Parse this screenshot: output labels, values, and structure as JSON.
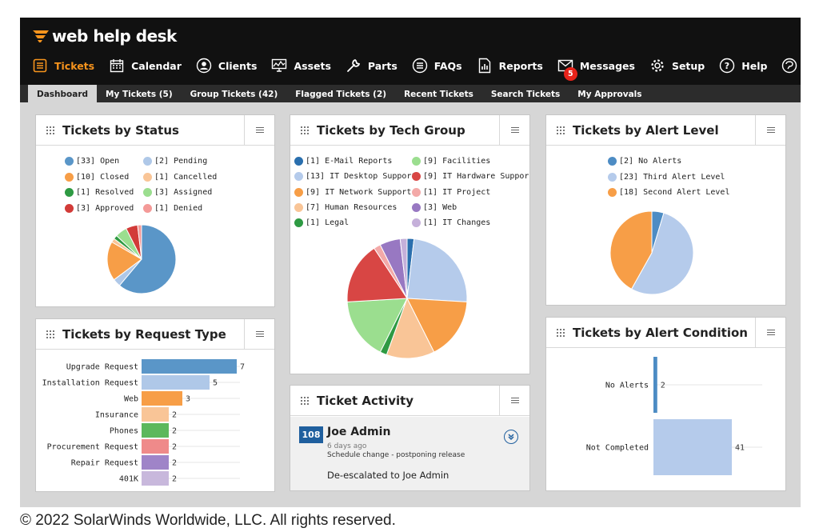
{
  "app": {
    "logo_text": "web help desk",
    "brand_color": "#f7941d"
  },
  "nav": [
    {
      "label": "Tickets",
      "icon": "tickets-icon",
      "active": true
    },
    {
      "label": "Calendar",
      "icon": "calendar-icon"
    },
    {
      "label": "Clients",
      "icon": "clients-icon"
    },
    {
      "label": "Assets",
      "icon": "assets-icon"
    },
    {
      "label": "Parts",
      "icon": "parts-icon"
    },
    {
      "label": "FAQs",
      "icon": "faqs-icon"
    },
    {
      "label": "Reports",
      "icon": "reports-icon"
    },
    {
      "label": "Messages",
      "icon": "messages-icon",
      "badge": "5"
    },
    {
      "label": "Setup",
      "icon": "setup-icon"
    },
    {
      "label": "Help",
      "icon": "help-icon"
    },
    {
      "label": "Thwack",
      "icon": "thwack-icon"
    }
  ],
  "tabs": [
    {
      "label": "Dashboard",
      "active": true
    },
    {
      "label": "My Tickets (5)"
    },
    {
      "label": "Group Tickets (42)"
    },
    {
      "label": "Flagged Tickets (2)"
    },
    {
      "label": "Recent Tickets"
    },
    {
      "label": "Search Tickets"
    },
    {
      "label": "My Approvals"
    }
  ],
  "widgets": {
    "status": {
      "title": "Tickets by Status"
    },
    "tech": {
      "title": "Tickets by Tech Group"
    },
    "alert_level": {
      "title": "Tickets by Alert Level"
    },
    "request_type": {
      "title": "Tickets by Request Type"
    },
    "activity": {
      "title": "Ticket Activity"
    },
    "alert_condition": {
      "title": "Tickets by Alert Condition"
    }
  },
  "activity": {
    "ticket_number": "108",
    "name": "Joe Admin",
    "time_ago": "6 days ago",
    "note": "Schedule change - postponing release",
    "action": "De-escalated to Joe Admin"
  },
  "chart_data": [
    {
      "id": "status",
      "type": "pie",
      "title": "Tickets by Status",
      "series": [
        {
          "name": "Open",
          "value": 33,
          "color": "#5a96c8"
        },
        {
          "name": "Pending",
          "value": 2,
          "color": "#afc8e8"
        },
        {
          "name": "Closed",
          "value": 10,
          "color": "#f79e47"
        },
        {
          "name": "Cancelled",
          "value": 1,
          "color": "#f9c597"
        },
        {
          "name": "Resolved",
          "value": 1,
          "color": "#2e9a43"
        },
        {
          "name": "Assigned",
          "value": 3,
          "color": "#9bde8f"
        },
        {
          "name": "Approved",
          "value": 3,
          "color": "#d23b38"
        },
        {
          "name": "Denied",
          "value": 1,
          "color": "#f49a98"
        }
      ]
    },
    {
      "id": "tech",
      "type": "pie",
      "title": "Tickets by Tech Group",
      "series": [
        {
          "name": "E-Mail Reports",
          "value": 1,
          "color": "#2a6fae"
        },
        {
          "name": "Facilities",
          "value": 9,
          "color": "#9bde8f"
        },
        {
          "name": "IT Desktop Support",
          "value": 13,
          "color": "#b5cbeb"
        },
        {
          "name": "IT Hardware Support",
          "value": 9,
          "color": "#d84644"
        },
        {
          "name": "IT Network Support",
          "value": 9,
          "color": "#f79e47"
        },
        {
          "name": "IT Project",
          "value": 1,
          "color": "#f3a9a8"
        },
        {
          "name": "Human Resources",
          "value": 7,
          "color": "#f9c597"
        },
        {
          "name": "Web",
          "value": 3,
          "color": "#9878c2"
        },
        {
          "name": "Legal",
          "value": 1,
          "color": "#2e9a43"
        },
        {
          "name": "IT Changes",
          "value": 1,
          "color": "#c5b0da"
        }
      ],
      "pie_order": [
        "E-Mail Reports",
        "IT Desktop Support",
        "IT Network Support",
        "Human Resources",
        "Legal",
        "Facilities",
        "IT Hardware Support",
        "IT Project",
        "Web",
        "IT Changes"
      ]
    },
    {
      "id": "alert_level",
      "type": "pie",
      "title": "Tickets by Alert Level",
      "series": [
        {
          "name": "No Alerts",
          "value": 2,
          "color": "#4d8cc4"
        },
        {
          "name": "Third Alert Level",
          "value": 23,
          "color": "#b5cbeb"
        },
        {
          "name": "Second Alert Level",
          "value": 18,
          "color": "#f79e47"
        }
      ]
    },
    {
      "id": "request_type",
      "type": "bar",
      "orientation": "horizontal",
      "title": "Tickets by Request Type",
      "categories": [
        "Upgrade Request",
        "Installation Request",
        "Web",
        "Insurance",
        "Phones",
        "Procurement Request",
        "Repair Request",
        "401K"
      ],
      "values": [
        7,
        5,
        3,
        2,
        2,
        2,
        2,
        2
      ],
      "colors": [
        "#5a96c8",
        "#afc8e8",
        "#f79e47",
        "#f9c597",
        "#5cb85c",
        "#ef8a8a",
        "#9f84c8",
        "#c8b8dc"
      ],
      "xlim": [
        0,
        7
      ]
    },
    {
      "id": "alert_condition",
      "type": "bar",
      "orientation": "horizontal",
      "title": "Tickets by Alert Condition",
      "categories": [
        "No Alerts",
        "Not Completed"
      ],
      "values": [
        2,
        41
      ],
      "colors": [
        "#4d8cc4",
        "#b5cbeb"
      ],
      "xlim": [
        0,
        41
      ]
    }
  ],
  "copyright": "© 2022 SolarWinds Worldwide, LLC. All rights reserved."
}
